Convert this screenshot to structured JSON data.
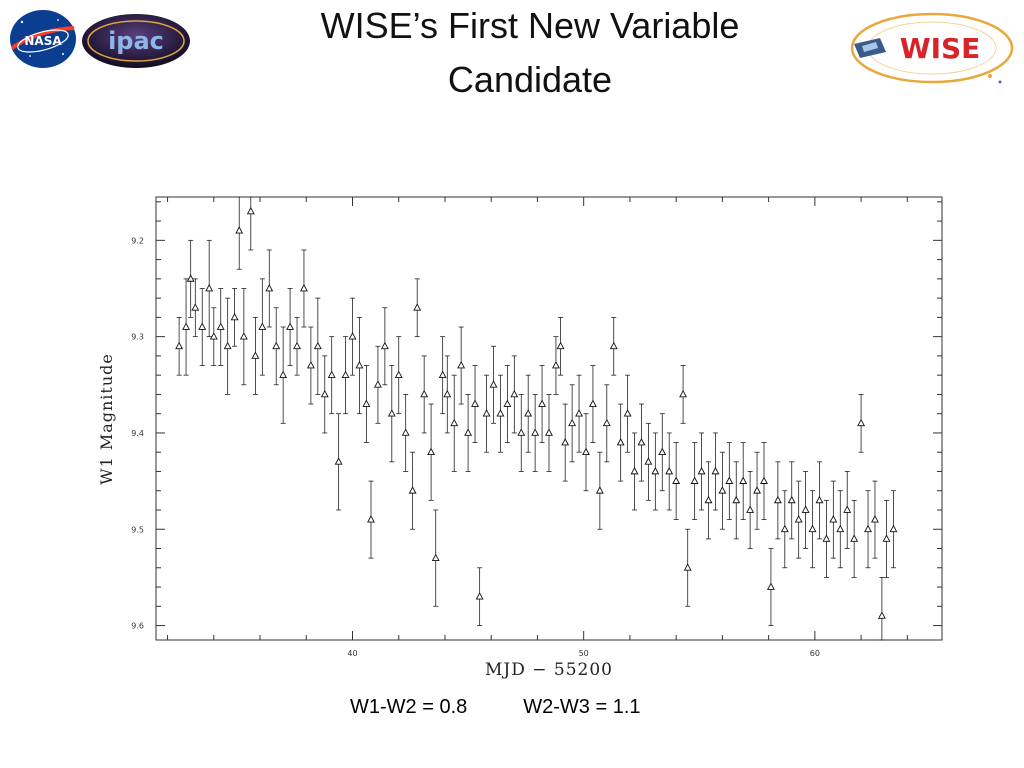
{
  "slide": {
    "title_line1": "WISE’s First New Variable",
    "title_line2": "Candidate",
    "colors": {
      "w1_w2": "W1-W2 = 0.8",
      "w2_w3": "W2-W3 = 1.1"
    }
  },
  "logos": {
    "nasa": "NASA",
    "ipac": "ipac",
    "wise": "WISE"
  },
  "chart_data": {
    "type": "scatter",
    "title": "",
    "xlabel": "MJD − 55200",
    "ylabel": "W1 Magnitude",
    "xlim": [
      31.5,
      65.5
    ],
    "ylim": [
      9.155,
      9.615
    ],
    "y_inverted": true,
    "x_ticks": [
      40,
      50,
      60
    ],
    "y_ticks": [
      9.2,
      9.3,
      9.4,
      9.5,
      9.6
    ],
    "marker": "open-triangle",
    "error_bars": true,
    "grid": false,
    "series": [
      {
        "name": "",
        "points": [
          [
            32.5,
            9.31,
            0.03
          ],
          [
            32.8,
            9.29,
            0.05
          ],
          [
            33.0,
            9.24,
            0.04
          ],
          [
            33.2,
            9.27,
            0.03
          ],
          [
            33.5,
            9.29,
            0.04
          ],
          [
            33.8,
            9.25,
            0.05
          ],
          [
            34.0,
            9.3,
            0.03
          ],
          [
            34.3,
            9.29,
            0.04
          ],
          [
            34.6,
            9.31,
            0.05
          ],
          [
            34.9,
            9.28,
            0.03
          ],
          [
            35.1,
            9.19,
            0.04
          ],
          [
            35.3,
            9.3,
            0.05
          ],
          [
            35.6,
            9.17,
            0.04
          ],
          [
            35.8,
            9.32,
            0.04
          ],
          [
            36.1,
            9.29,
            0.05
          ],
          [
            36.4,
            9.25,
            0.04
          ],
          [
            36.7,
            9.31,
            0.04
          ],
          [
            37.0,
            9.34,
            0.05
          ],
          [
            37.3,
            9.29,
            0.04
          ],
          [
            37.6,
            9.31,
            0.03
          ],
          [
            37.9,
            9.25,
            0.04
          ],
          [
            38.2,
            9.33,
            0.04
          ],
          [
            38.5,
            9.31,
            0.05
          ],
          [
            38.8,
            9.36,
            0.04
          ],
          [
            39.1,
            9.34,
            0.04
          ],
          [
            39.4,
            9.43,
            0.05
          ],
          [
            39.7,
            9.34,
            0.04
          ],
          [
            40.0,
            9.3,
            0.04
          ],
          [
            40.3,
            9.33,
            0.05
          ],
          [
            40.6,
            9.37,
            0.04
          ],
          [
            40.8,
            9.49,
            0.04
          ],
          [
            41.1,
            9.35,
            0.04
          ],
          [
            41.4,
            9.31,
            0.04
          ],
          [
            41.7,
            9.38,
            0.05
          ],
          [
            42.0,
            9.34,
            0.04
          ],
          [
            42.3,
            9.4,
            0.04
          ],
          [
            42.6,
            9.46,
            0.04
          ],
          [
            42.8,
            9.27,
            0.03
          ],
          [
            43.1,
            9.36,
            0.04
          ],
          [
            43.4,
            9.42,
            0.05
          ],
          [
            43.6,
            9.53,
            0.05
          ],
          [
            43.9,
            9.34,
            0.04
          ],
          [
            44.1,
            9.36,
            0.04
          ],
          [
            44.4,
            9.39,
            0.05
          ],
          [
            44.7,
            9.33,
            0.04
          ],
          [
            45.0,
            9.4,
            0.04
          ],
          [
            45.3,
            9.37,
            0.04
          ],
          [
            45.5,
            9.57,
            0.03
          ],
          [
            45.8,
            9.38,
            0.04
          ],
          [
            46.1,
            9.35,
            0.04
          ],
          [
            46.4,
            9.38,
            0.04
          ],
          [
            46.7,
            9.37,
            0.04
          ],
          [
            47.0,
            9.36,
            0.04
          ],
          [
            47.3,
            9.4,
            0.04
          ],
          [
            47.6,
            9.38,
            0.04
          ],
          [
            47.9,
            9.4,
            0.04
          ],
          [
            48.2,
            9.37,
            0.04
          ],
          [
            48.5,
            9.4,
            0.04
          ],
          [
            48.8,
            9.33,
            0.03
          ],
          [
            49.0,
            9.31,
            0.03
          ],
          [
            49.2,
            9.41,
            0.04
          ],
          [
            49.5,
            9.39,
            0.04
          ],
          [
            49.8,
            9.38,
            0.04
          ],
          [
            50.1,
            9.42,
            0.04
          ],
          [
            50.4,
            9.37,
            0.04
          ],
          [
            50.7,
            9.46,
            0.04
          ],
          [
            51.0,
            9.39,
            0.04
          ],
          [
            51.3,
            9.31,
            0.03
          ],
          [
            51.6,
            9.41,
            0.04
          ],
          [
            51.9,
            9.38,
            0.04
          ],
          [
            52.2,
            9.44,
            0.04
          ],
          [
            52.5,
            9.41,
            0.04
          ],
          [
            52.8,
            9.43,
            0.04
          ],
          [
            53.1,
            9.44,
            0.04
          ],
          [
            53.4,
            9.42,
            0.04
          ],
          [
            53.7,
            9.44,
            0.04
          ],
          [
            54.0,
            9.45,
            0.04
          ],
          [
            54.3,
            9.36,
            0.03
          ],
          [
            54.5,
            9.54,
            0.04
          ],
          [
            54.8,
            9.45,
            0.04
          ],
          [
            55.1,
            9.44,
            0.04
          ],
          [
            55.4,
            9.47,
            0.04
          ],
          [
            55.7,
            9.44,
            0.04
          ],
          [
            56.0,
            9.46,
            0.04
          ],
          [
            56.3,
            9.45,
            0.04
          ],
          [
            56.6,
            9.47,
            0.04
          ],
          [
            56.9,
            9.45,
            0.04
          ],
          [
            57.2,
            9.48,
            0.04
          ],
          [
            57.5,
            9.46,
            0.04
          ],
          [
            57.8,
            9.45,
            0.04
          ],
          [
            58.1,
            9.56,
            0.04
          ],
          [
            58.4,
            9.47,
            0.04
          ],
          [
            58.7,
            9.5,
            0.04
          ],
          [
            59.0,
            9.47,
            0.04
          ],
          [
            59.3,
            9.49,
            0.04
          ],
          [
            59.6,
            9.48,
            0.04
          ],
          [
            59.9,
            9.5,
            0.04
          ],
          [
            60.2,
            9.47,
            0.04
          ],
          [
            60.5,
            9.51,
            0.04
          ],
          [
            60.8,
            9.49,
            0.04
          ],
          [
            61.1,
            9.5,
            0.04
          ],
          [
            61.4,
            9.48,
            0.04
          ],
          [
            61.7,
            9.51,
            0.04
          ],
          [
            62.0,
            9.39,
            0.03
          ],
          [
            62.3,
            9.5,
            0.04
          ],
          [
            62.6,
            9.49,
            0.04
          ],
          [
            62.9,
            9.59,
            0.04
          ],
          [
            63.1,
            9.51,
            0.04
          ],
          [
            63.4,
            9.5,
            0.04
          ]
        ]
      }
    ]
  }
}
